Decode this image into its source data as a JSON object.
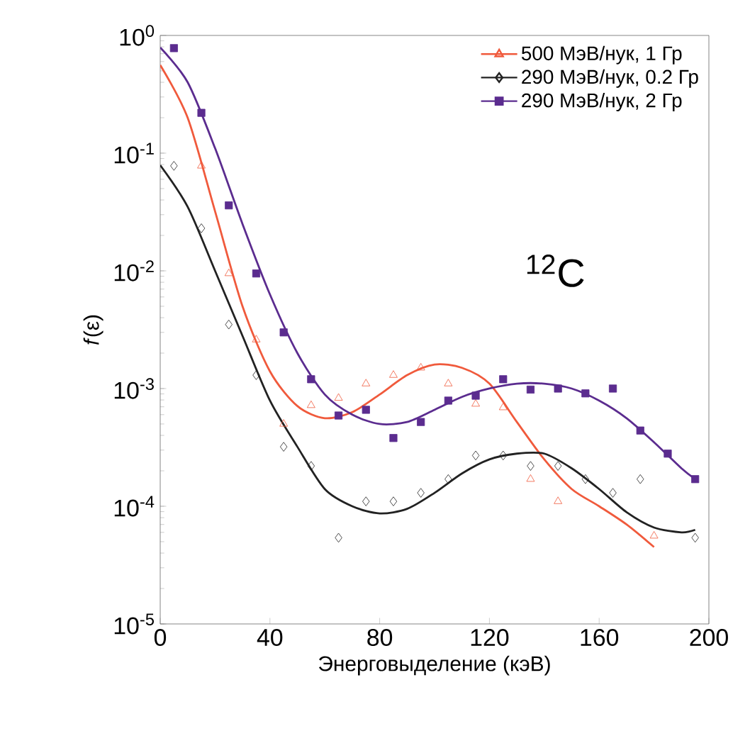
{
  "chart_data": {
    "type": "scatter",
    "xlabel": "Энерговыделение (кэВ)",
    "ylabel": "*f*(ε)",
    "log": "y",
    "legend": "top right",
    "annotations": [
      "$^{12}$C"
    ],
    "xlim": [
      0,
      200
    ],
    "xticks": [
      0,
      40,
      80,
      120,
      160,
      200
    ],
    "ylim": [
      1e-05,
      1
    ],
    "yticks": [
      {
        "value": 1e-05,
        "label": "10$^{-5}$"
      },
      {
        "value": 0.0001,
        "label": "10$^{-4}$"
      },
      {
        "value": 0.001,
        "label": "10$^{-3}$"
      },
      {
        "value": 0.01,
        "label": "10$^{-2}$"
      },
      {
        "value": 0.1,
        "label": "10$^{-1}$"
      },
      {
        "value": 1,
        "label": "10$^{0}$"
      }
    ],
    "series": [
      {
        "name": "500 МэВ/нук, 1 Гр",
        "color": "#f05a3c",
        "marker": "triangle",
        "x": [
          15,
          25,
          35,
          45,
          55,
          65,
          75,
          85,
          95,
          105,
          115,
          125,
          135,
          145,
          180
        ],
        "values": [
          0.078,
          0.0095,
          0.0026,
          0.0005,
          0.00072,
          0.00083,
          0.0011,
          0.0013,
          0.0015,
          0.0011,
          0.00074,
          0.00069,
          0.00017,
          0.00011,
          5.6e-05
        ]
      },
      {
        "name": "290 МэВ/нук, 0.2 Гр",
        "color": "#222222",
        "marker": "diamond",
        "x": [
          5,
          15,
          25,
          35,
          45,
          55,
          65,
          75,
          85,
          95,
          105,
          115,
          125,
          135,
          145,
          155,
          165,
          175,
          195
        ],
        "values": [
          0.078,
          0.023,
          0.0035,
          0.0013,
          0.00032,
          0.00022,
          5.4e-05,
          0.00011,
          0.00011,
          0.00013,
          0.00017,
          0.00027,
          0.00027,
          0.00022,
          0.00022,
          0.00017,
          0.00013,
          0.00017,
          5.4e-05
        ]
      },
      {
        "name": "290 МэВ/нук, 2 Гр",
        "color": "#5b2c8f",
        "marker": "square",
        "x": [
          5,
          15,
          25,
          35,
          45,
          55,
          65,
          75,
          85,
          95,
          105,
          115,
          125,
          135,
          145,
          155,
          165,
          175,
          185,
          195
        ],
        "values": [
          0.78,
          0.22,
          0.036,
          0.0095,
          0.003,
          0.0012,
          0.00059,
          0.00066,
          0.00038,
          0.00052,
          0.00079,
          0.00087,
          0.0012,
          0.00098,
          0.001,
          0.00091,
          0.001,
          0.00044,
          0.00028,
          0.00017
        ]
      },
      {
        "type": "line",
        "color": "#f05a3c",
        "x": [
          0,
          10,
          20,
          30,
          40,
          50,
          60,
          70,
          80,
          90,
          100,
          110,
          120,
          130,
          140,
          150,
          160,
          170,
          180
        ],
        "values": [
          0.56,
          0.2,
          0.032,
          0.005,
          0.0014,
          0.00071,
          0.00056,
          0.00063,
          0.00089,
          0.0013,
          0.0016,
          0.0015,
          0.0011,
          0.00052,
          0.00025,
          0.00014,
          0.0001,
          7e-05,
          4.5e-05
        ]
      },
      {
        "type": "line",
        "color": "#222222",
        "x": [
          0,
          10,
          20,
          30,
          40,
          50,
          60,
          70,
          80,
          90,
          100,
          110,
          120,
          130,
          140,
          150,
          160,
          170,
          180,
          190,
          195
        ],
        "values": [
          0.079,
          0.035,
          0.01,
          0.0028,
          0.00079,
          0.00032,
          0.00014,
          0.0001,
          8.7e-05,
          9.5e-05,
          0.00013,
          0.00019,
          0.00025,
          0.00028,
          0.00028,
          0.00021,
          0.00014,
          8.9e-05,
          6.6e-05,
          6e-05,
          6.3e-05
        ]
      },
      {
        "type": "line",
        "color": "#5b2c8f",
        "x": [
          0,
          10,
          20,
          30,
          40,
          50,
          60,
          70,
          80,
          90,
          100,
          110,
          120,
          130,
          140,
          150,
          160,
          170,
          180,
          190,
          195
        ],
        "values": [
          0.79,
          0.4,
          0.11,
          0.025,
          0.0063,
          0.002,
          0.00089,
          0.0006,
          0.0005,
          0.00052,
          0.00066,
          0.00085,
          0.001,
          0.0011,
          0.0011,
          0.001,
          0.00079,
          0.00056,
          0.00035,
          0.00021,
          0.00017
        ]
      }
    ]
  }
}
